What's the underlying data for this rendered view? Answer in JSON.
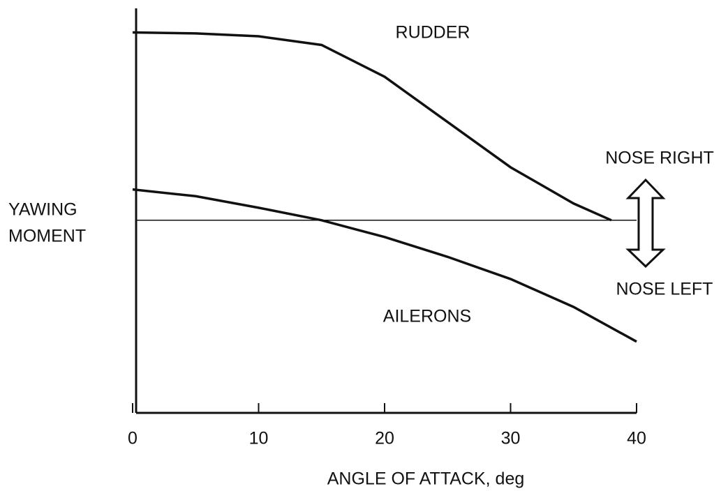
{
  "chart_data": {
    "type": "line",
    "xlabel": "ANGLE OF ATTACK, deg",
    "ylabel": [
      "YAWING",
      "MOMENT"
    ],
    "xlim": [
      0,
      40
    ],
    "xticks": [
      0,
      10,
      20,
      30,
      40
    ],
    "ylim": [
      -10,
      11
    ],
    "series": [
      {
        "name": "RUDDER",
        "color": "#111111",
        "x": [
          0,
          5,
          10,
          15,
          20,
          25,
          30,
          35,
          38
        ],
        "values": [
          9.75,
          9.7,
          9.55,
          9.1,
          7.45,
          5.1,
          2.75,
          0.87,
          0
        ]
      },
      {
        "name": "AILERONS",
        "color": "#111111",
        "x": [
          0,
          5,
          10,
          15,
          20,
          25,
          30,
          35,
          40
        ],
        "values": [
          1.6,
          1.25,
          0.65,
          0,
          -0.87,
          -1.9,
          -3.05,
          -4.5,
          -6.3
        ]
      }
    ],
    "annotations": [
      "NOSE RIGHT",
      "NOSE LEFT"
    ]
  }
}
